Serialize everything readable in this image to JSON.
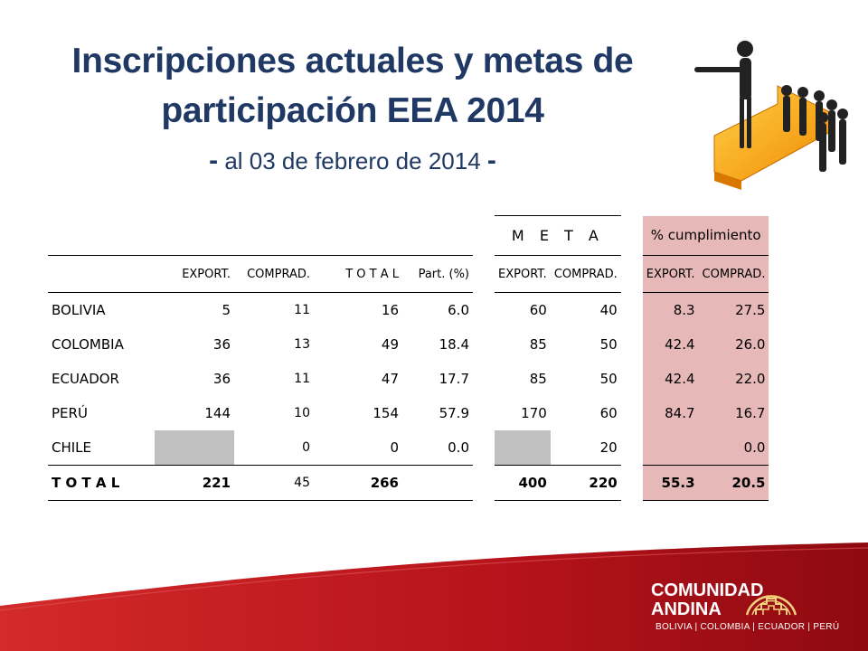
{
  "title": {
    "line1": "Inscripciones actuales y metas de",
    "line2": "participación EEA 2014",
    "dash_left": "-",
    "subtitle": "al 03 de febrero de 2014",
    "dash_right": "-"
  },
  "table": {
    "meta_header": "M E T A",
    "cumplimiento_header": "% cumplimiento",
    "columns": [
      "EXPORT.",
      "COMPRAD.",
      "T O T A L",
      "Part. (%)",
      "EXPORT.",
      "COMPRAD.",
      "EXPORT.",
      "COMPRAD."
    ],
    "rows": [
      {
        "country": "BOLIVIA",
        "export": "5",
        "comprad": "11",
        "total": "16",
        "part": "6.0",
        "meta_export": "60",
        "meta_comprad": "40",
        "cum_export": "8.3",
        "cum_comprad": "27.5"
      },
      {
        "country": "COLOMBIA",
        "export": "36",
        "comprad": "13",
        "total": "49",
        "part": "18.4",
        "meta_export": "85",
        "meta_comprad": "50",
        "cum_export": "42.4",
        "cum_comprad": "26.0"
      },
      {
        "country": "ECUADOR",
        "export": "36",
        "comprad": "11",
        "total": "47",
        "part": "17.7",
        "meta_export": "85",
        "meta_comprad": "50",
        "cum_export": "42.4",
        "cum_comprad": "22.0"
      },
      {
        "country": "PERÚ",
        "export": "144",
        "comprad": "10",
        "total": "154",
        "part": "57.9",
        "meta_export": "170",
        "meta_comprad": "60",
        "cum_export": "84.7",
        "cum_comprad": "16.7"
      },
      {
        "country": "CHILE",
        "export": "",
        "comprad": "0",
        "total": "0",
        "part": "0.0",
        "meta_export": "",
        "meta_comprad": "20",
        "cum_export": "",
        "cum_comprad": "0.0"
      }
    ],
    "total": {
      "label": "T O T A L",
      "export": "221",
      "comprad": "45",
      "total": "266",
      "meta_export": "400",
      "meta_comprad": "220",
      "cum_export": "55.3",
      "cum_comprad": "20.5"
    }
  },
  "footer": {
    "logo_line1": "COMUNIDAD",
    "logo_line2": "ANDINA",
    "members": "BOLIVIA | COLOMBIA | ECUADOR | PERÚ"
  },
  "colors": {
    "title": "#1f3864",
    "pink_cells": "#e6b9b8",
    "grey_cells": "#c0c0c0",
    "footer_red": "#b5121b"
  }
}
